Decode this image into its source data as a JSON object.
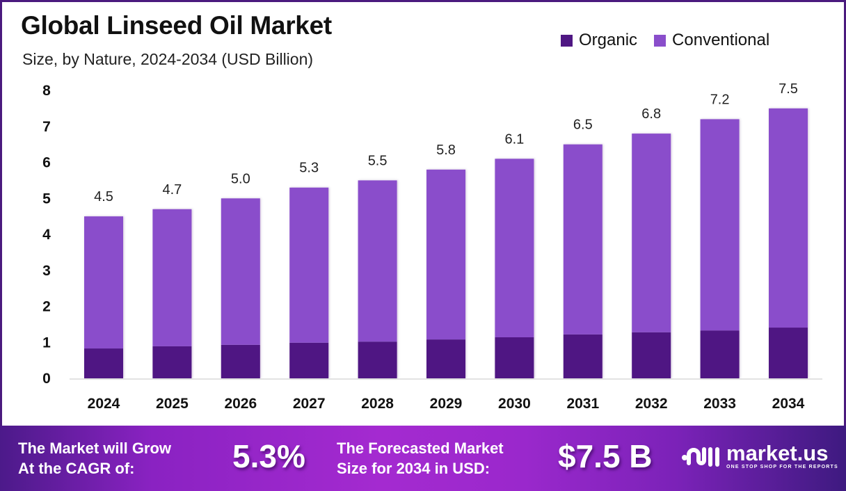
{
  "header": {
    "title": "Global Linseed Oil Market",
    "subtitle": "Size, by Nature, 2024-2034 (USD Billion)"
  },
  "colors": {
    "organic": "#4f1783",
    "conventional": "#8a4ecb",
    "frame": "#4a1a7e"
  },
  "chart_data": {
    "type": "bar",
    "stacked": true,
    "title": "Global Linseed Oil Market",
    "subtitle": "Size, by Nature, 2024-2034 (USD Billion)",
    "xlabel": "",
    "ylabel": "",
    "ylim": [
      0,
      8
    ],
    "yticks": [
      "0",
      "1",
      "2",
      "3",
      "4",
      "5",
      "6",
      "7",
      "8"
    ],
    "grid": false,
    "legend_position": "top-right",
    "categories": [
      "2024",
      "2025",
      "2026",
      "2027",
      "2028",
      "2029",
      "2030",
      "2031",
      "2032",
      "2033",
      "2034"
    ],
    "series": [
      {
        "name": "Organic",
        "values": [
          0.83,
          0.89,
          0.93,
          0.99,
          1.02,
          1.08,
          1.14,
          1.22,
          1.28,
          1.33,
          1.41
        ]
      },
      {
        "name": "Conventional",
        "values": [
          3.67,
          3.81,
          4.07,
          4.31,
          4.48,
          4.72,
          4.96,
          5.28,
          5.52,
          5.87,
          6.09
        ]
      }
    ],
    "totals": [
      4.5,
      4.7,
      5.0,
      5.3,
      5.5,
      5.8,
      6.1,
      6.5,
      6.8,
      7.2,
      7.5
    ],
    "total_labels": [
      "4.5",
      "4.7",
      "5.0",
      "5.3",
      "5.5",
      "5.8",
      "6.1",
      "6.5",
      "6.8",
      "7.2",
      "7.5"
    ]
  },
  "legend": {
    "items": [
      {
        "label": "Organic"
      },
      {
        "label": "Conventional"
      }
    ]
  },
  "banner": {
    "cagr_text_line1": "The Market will Grow",
    "cagr_text_line2": "At the CAGR of:",
    "cagr_value": "5.3%",
    "forecast_text_line1": "The Forecasted Market",
    "forecast_text_line2": "Size for 2034 in USD:",
    "forecast_value": "$7.5 B",
    "logo_name": "market.us",
    "logo_tagline": "ONE STOP SHOP FOR THE REPORTS"
  }
}
